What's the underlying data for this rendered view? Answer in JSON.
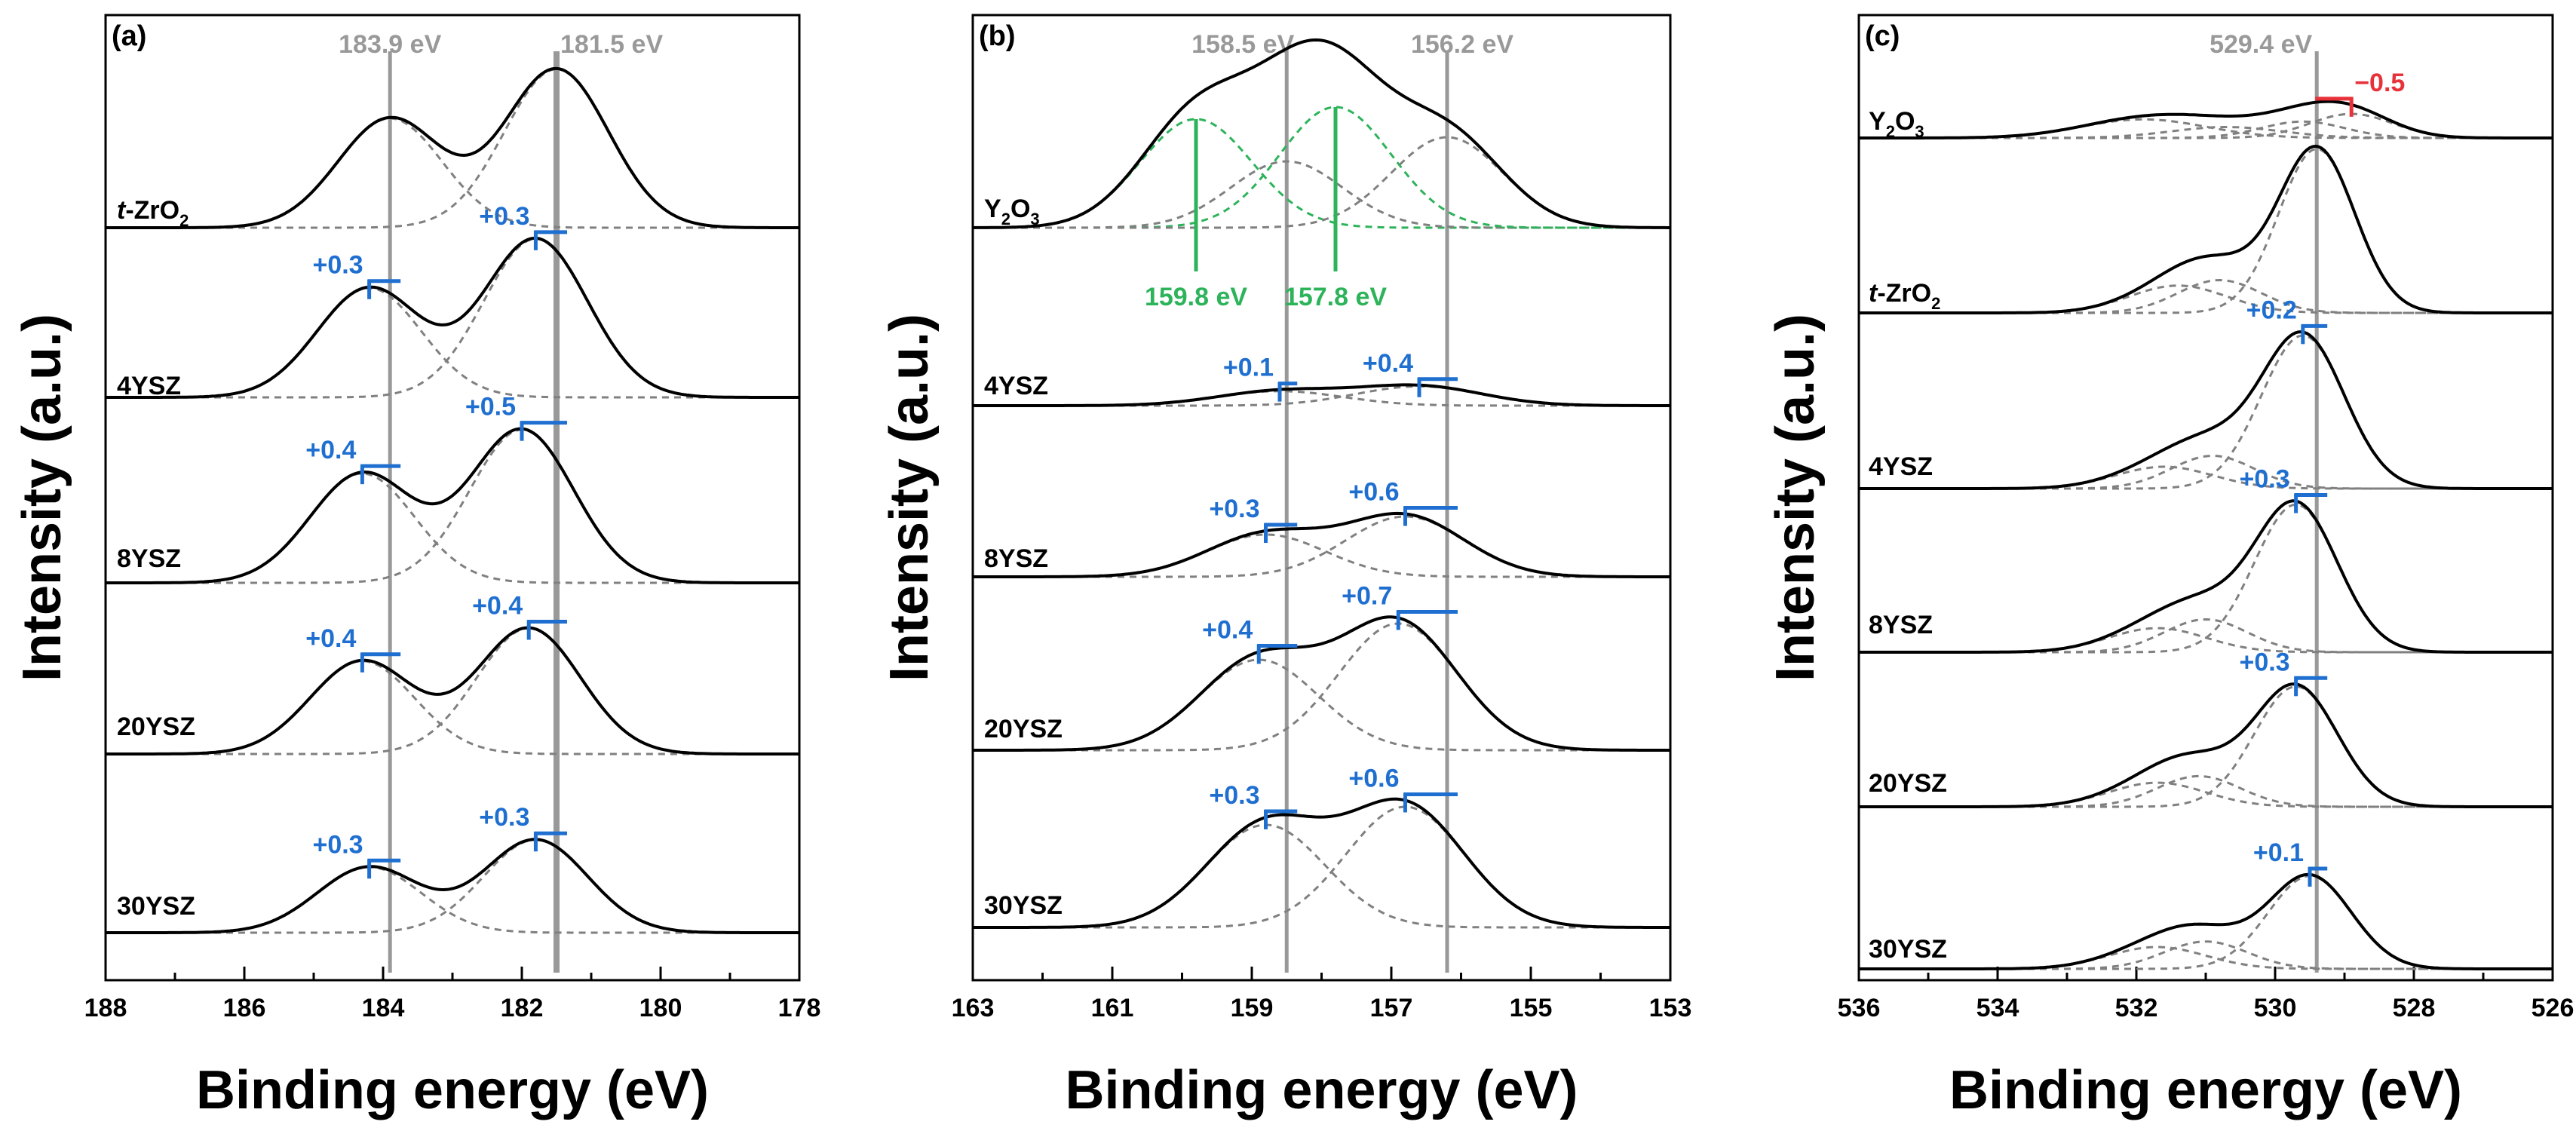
{
  "colors": {
    "envelope": "#000000",
    "component": "#808080",
    "reference": "#999999",
    "shift": "#1f6fd1",
    "shift_negative": "#e8323a",
    "y2o3_component": "#2db35a"
  },
  "chart_data": [
    {
      "panel": "(a)",
      "type": "line",
      "xlabel": "Binding energy (eV)",
      "ylabel": "Intensity (a.u.)",
      "xlim": [
        188,
        178
      ],
      "x_ticks": [
        188,
        186,
        184,
        182,
        180,
        178
      ],
      "reference_lines": [
        {
          "x": 183.9,
          "label": "183.9 eV"
        },
        {
          "x": 181.5,
          "label": "181.5 eV"
        }
      ],
      "series": [
        {
          "name": "t-ZrO2",
          "label_main": "t-ZrO",
          "label_sub": "2",
          "italic_prefix": "t",
          "peaks": [
            {
              "center": 183.9,
              "height": 1.0,
              "width": 0.75
            },
            {
              "center": 181.5,
              "height": 1.45,
              "width": 0.75
            }
          ],
          "shifts": []
        },
        {
          "name": "4YSZ",
          "label_main": "4YSZ",
          "label_sub": "",
          "peaks": [
            {
              "center": 184.2,
              "height": 1.0,
              "width": 0.75
            },
            {
              "center": 181.8,
              "height": 1.45,
              "width": 0.75
            }
          ],
          "shifts": [
            {
              "ref": 183.9,
              "shifted": 184.2,
              "label": "+0.3"
            },
            {
              "ref": 181.5,
              "shifted": 181.8,
              "label": "+0.3"
            }
          ]
        },
        {
          "name": "8YSZ",
          "label_main": "8YSZ",
          "label_sub": "",
          "peaks": [
            {
              "center": 184.3,
              "height": 1.0,
              "width": 0.75
            },
            {
              "center": 182.0,
              "height": 1.4,
              "width": 0.75
            }
          ],
          "shifts": [
            {
              "ref": 183.9,
              "shifted": 184.3,
              "label": "+0.4"
            },
            {
              "ref": 181.5,
              "shifted": 182.0,
              "label": "+0.5"
            }
          ]
        },
        {
          "name": "20YSZ",
          "label_main": "20YSZ",
          "label_sub": "",
          "peaks": [
            {
              "center": 184.3,
              "height": 0.85,
              "width": 0.75
            },
            {
              "center": 181.9,
              "height": 1.15,
              "width": 0.75
            }
          ],
          "shifts": [
            {
              "ref": 183.9,
              "shifted": 184.3,
              "label": "+0.4"
            },
            {
              "ref": 181.5,
              "shifted": 181.9,
              "label": "+0.4"
            }
          ]
        },
        {
          "name": "30YSZ",
          "label_main": "30YSZ",
          "label_sub": "",
          "peaks": [
            {
              "center": 184.2,
              "height": 0.6,
              "width": 0.75
            },
            {
              "center": 181.8,
              "height": 0.85,
              "width": 0.75
            }
          ],
          "shifts": [
            {
              "ref": 183.9,
              "shifted": 184.2,
              "label": "+0.3"
            },
            {
              "ref": 181.5,
              "shifted": 181.8,
              "label": "+0.3"
            }
          ]
        }
      ]
    },
    {
      "panel": "(b)",
      "type": "line",
      "xlabel": "Binding energy (eV)",
      "ylabel": "Intensity (a.u.)",
      "xlim": [
        163,
        153
      ],
      "x_ticks": [
        163,
        161,
        159,
        157,
        155,
        153
      ],
      "reference_lines": [
        {
          "x": 158.5,
          "label": "158.5 eV"
        },
        {
          "x": 156.2,
          "label": "156.2 eV"
        }
      ],
      "y2o3_components": [
        {
          "x": 159.8,
          "label": "159.8 eV"
        },
        {
          "x": 157.8,
          "label": "157.8 eV"
        }
      ],
      "series": [
        {
          "name": "Y2O3",
          "label_main": "Y",
          "label_sub": "2",
          "label_main2": "O",
          "label_sub2": "3",
          "peaks": [
            {
              "center": 159.8,
              "height": 0.9,
              "width": 0.8
            },
            {
              "center": 158.5,
              "height": 0.55,
              "width": 0.8
            },
            {
              "center": 157.8,
              "height": 1.0,
              "width": 0.8
            },
            {
              "center": 156.2,
              "height": 0.75,
              "width": 0.8
            }
          ],
          "shifts": []
        },
        {
          "name": "4YSZ",
          "label_main": "4YSZ",
          "label_sub": "",
          "peaks": [
            {
              "center": 158.6,
              "height": 0.12,
              "width": 0.9
            },
            {
              "center": 156.6,
              "height": 0.16,
              "width": 0.9
            }
          ],
          "shifts": [
            {
              "ref": 158.5,
              "shifted": 158.6,
              "label": "+0.1"
            },
            {
              "ref": 156.2,
              "shifted": 156.6,
              "label": "+0.4"
            }
          ]
        },
        {
          "name": "8YSZ",
          "label_main": "8YSZ",
          "label_sub": "",
          "peaks": [
            {
              "center": 158.8,
              "height": 0.35,
              "width": 0.85
            },
            {
              "center": 156.8,
              "height": 0.5,
              "width": 0.85
            }
          ],
          "shifts": [
            {
              "ref": 158.5,
              "shifted": 158.8,
              "label": "+0.3"
            },
            {
              "ref": 156.2,
              "shifted": 156.8,
              "label": "+0.6"
            }
          ]
        },
        {
          "name": "20YSZ",
          "label_main": "20YSZ",
          "label_sub": "",
          "peaks": [
            {
              "center": 158.9,
              "height": 0.75,
              "width": 0.85
            },
            {
              "center": 156.9,
              "height": 1.05,
              "width": 0.85
            }
          ],
          "shifts": [
            {
              "ref": 158.5,
              "shifted": 158.9,
              "label": "+0.4"
            },
            {
              "ref": 156.2,
              "shifted": 156.9,
              "label": "+0.7"
            }
          ]
        },
        {
          "name": "30YSZ",
          "label_main": "30YSZ",
          "label_sub": "",
          "peaks": [
            {
              "center": 158.8,
              "height": 0.85,
              "width": 0.85
            },
            {
              "center": 156.8,
              "height": 1.0,
              "width": 0.85
            }
          ],
          "shifts": [
            {
              "ref": 158.5,
              "shifted": 158.8,
              "label": "+0.3"
            },
            {
              "ref": 156.2,
              "shifted": 156.8,
              "label": "+0.6"
            }
          ]
        }
      ]
    },
    {
      "panel": "(c)",
      "type": "line",
      "xlabel": "Binding energy (eV)",
      "ylabel": "Intensity (a.u.)",
      "xlim": [
        536,
        526
      ],
      "x_ticks": [
        536,
        534,
        532,
        530,
        528,
        526
      ],
      "reference_lines": [
        {
          "x": 529.4,
          "label": "529.4 eV"
        }
      ],
      "series": [
        {
          "name": "Y2O3",
          "label_main": "Y",
          "label_sub": "2",
          "label_main2": "O",
          "label_sub2": "3",
          "peaks": [
            {
              "center": 528.9,
              "height": 0.22,
              "width": 0.6
            },
            {
              "center": 529.6,
              "height": 0.15,
              "width": 0.6
            },
            {
              "center": 531.9,
              "height": 0.17,
              "width": 0.9
            },
            {
              "center": 530.7,
              "height": 0.1,
              "width": 0.8
            }
          ],
          "shifts": [
            {
              "ref": 529.4,
              "shifted": 528.9,
              "label": "−0.5",
              "negative": true
            }
          ]
        },
        {
          "name": "t-ZrO2",
          "label_main": "t-ZrO",
          "label_sub": "2",
          "italic_prefix": "t",
          "peaks": [
            {
              "center": 529.4,
              "height": 1.5,
              "width": 0.55
            },
            {
              "center": 530.8,
              "height": 0.3,
              "width": 0.6
            },
            {
              "center": 531.4,
              "height": 0.25,
              "width": 0.7
            }
          ],
          "shifts": []
        },
        {
          "name": "4YSZ",
          "label_main": "4YSZ",
          "label_sub": "",
          "peaks": [
            {
              "center": 529.6,
              "height": 1.4,
              "width": 0.6
            },
            {
              "center": 530.9,
              "height": 0.3,
              "width": 0.6
            },
            {
              "center": 531.6,
              "height": 0.2,
              "width": 0.7
            }
          ],
          "shifts": [
            {
              "ref": 529.4,
              "shifted": 529.6,
              "label": "+0.2"
            }
          ]
        },
        {
          "name": "8YSZ",
          "label_main": "8YSZ",
          "label_sub": "",
          "peaks": [
            {
              "center": 529.7,
              "height": 1.35,
              "width": 0.6
            },
            {
              "center": 531.0,
              "height": 0.3,
              "width": 0.6
            },
            {
              "center": 531.7,
              "height": 0.22,
              "width": 0.7
            }
          ],
          "shifts": [
            {
              "ref": 529.4,
              "shifted": 529.7,
              "label": "+0.3"
            }
          ]
        },
        {
          "name": "20YSZ",
          "label_main": "20YSZ",
          "label_sub": "",
          "peaks": [
            {
              "center": 529.7,
              "height": 1.1,
              "width": 0.6
            },
            {
              "center": 531.1,
              "height": 0.28,
              "width": 0.6
            },
            {
              "center": 531.7,
              "height": 0.22,
              "width": 0.7
            }
          ],
          "shifts": [
            {
              "ref": 529.4,
              "shifted": 529.7,
              "label": "+0.3"
            }
          ]
        },
        {
          "name": "30YSZ",
          "label_main": "30YSZ",
          "label_sub": "",
          "peaks": [
            {
              "center": 529.5,
              "height": 0.85,
              "width": 0.6
            },
            {
              "center": 531.0,
              "height": 0.25,
              "width": 0.6
            },
            {
              "center": 531.7,
              "height": 0.2,
              "width": 0.7
            }
          ],
          "shifts": [
            {
              "ref": 529.4,
              "shifted": 529.5,
              "label": "+0.1"
            }
          ]
        }
      ]
    }
  ]
}
